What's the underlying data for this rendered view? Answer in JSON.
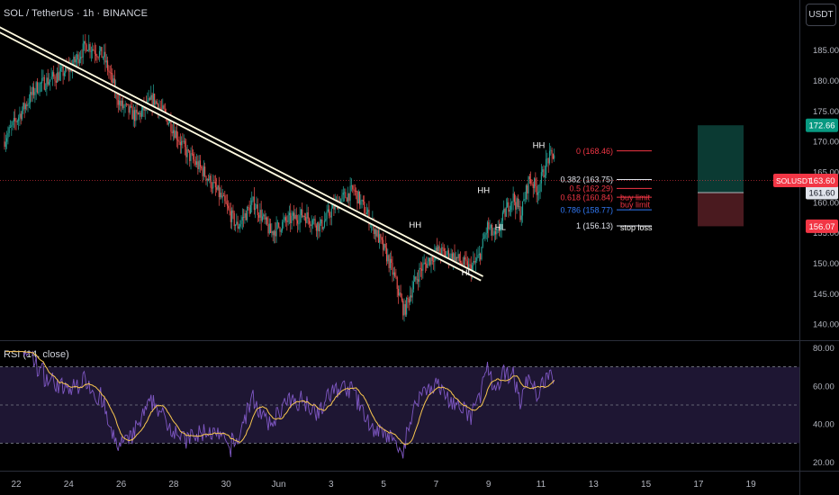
{
  "header": {
    "symbol_title": "SOL / TetherUS · 1h · BINANCE",
    "currency_label": "USDT"
  },
  "colors": {
    "background": "#000000",
    "up_candle": "#26a69a",
    "down_candle": "#ef5350",
    "trendline": "#fffbe0",
    "rsi_line": "#7e57c2",
    "rsi_ma": "#f9c74f",
    "profit_zone": "#0b3a33",
    "loss_zone": "#4a1a1f",
    "price_line": "#f23645"
  },
  "chart_data": {
    "type": "candlestick",
    "symbol": "SOLUSDT",
    "timeframe": "1h",
    "x_tick_labels": [
      "22",
      "24",
      "26",
      "28",
      "30",
      "Jun",
      "3",
      "5",
      "7",
      "9",
      "11",
      "13",
      "15",
      "17",
      "19"
    ],
    "price_axis": {
      "ticks": [
        "185.00",
        "180.00",
        "175.00",
        "170.00",
        "165.00",
        "160.00",
        "155.00",
        "150.00",
        "145.00",
        "140.00"
      ],
      "range": [
        137.5,
        192.5
      ]
    },
    "current_price": {
      "label": "SOLUSDT",
      "value": "163.60"
    },
    "price_badges": [
      {
        "name": "target",
        "value": "172.66",
        "color": "#089981"
      },
      {
        "name": "entry",
        "value": "161.60",
        "color": "#e0e3eb"
      },
      {
        "name": "stop",
        "value": "156.07",
        "color": "#f23645"
      }
    ],
    "price_path": [
      [
        0,
        170
      ],
      [
        2,
        179
      ],
      [
        4,
        182
      ],
      [
        5,
        186
      ],
      [
        6,
        184
      ],
      [
        7,
        176
      ],
      [
        8,
        174
      ],
      [
        9,
        177
      ],
      [
        10,
        173
      ],
      [
        11,
        168
      ],
      [
        12,
        165
      ],
      [
        13,
        161
      ],
      [
        14,
        156
      ],
      [
        15,
        160
      ],
      [
        16,
        155
      ],
      [
        17,
        157
      ],
      [
        18,
        158
      ],
      [
        19,
        156
      ],
      [
        20,
        160
      ],
      [
        21,
        162
      ],
      [
        22,
        157
      ],
      [
        23,
        151
      ],
      [
        23.5,
        147
      ],
      [
        24,
        142
      ],
      [
        24.5,
        146
      ],
      [
        25,
        149
      ],
      [
        26,
        152
      ],
      [
        27,
        151
      ],
      [
        28,
        149
      ],
      [
        28.5,
        151
      ],
      [
        29,
        156
      ],
      [
        29.5,
        154
      ],
      [
        30,
        158
      ],
      [
        30.5,
        161
      ],
      [
        31,
        158
      ],
      [
        31.5,
        164
      ],
      [
        32,
        162
      ],
      [
        32.6,
        167
      ],
      [
        33,
        168
      ]
    ],
    "trendline": {
      "start": [
        -0.4,
        188.5
      ],
      "end": [
        28.6,
        147.5
      ]
    },
    "structure_labels": [
      {
        "text": "HH",
        "x": 24.6,
        "price": 155.8
      },
      {
        "text": "HL",
        "x": 27.7,
        "price": 148.0
      },
      {
        "text": "HH",
        "x": 28.7,
        "price": 161.5
      },
      {
        "text": "HL",
        "x": 29.7,
        "price": 155.5
      },
      {
        "text": "HH",
        "x": 32.0,
        "price": 168.9
      }
    ],
    "fibonacci": [
      {
        "label": "0 (168.46)",
        "price": 168.46,
        "color": "#f23645"
      },
      {
        "label": "0.382 (163.75)",
        "price": 163.75,
        "color": "#e0e3eb"
      },
      {
        "label": "0.5 (162.29)",
        "price": 162.29,
        "color": "#f23645"
      },
      {
        "label": "0.618 (160.84)",
        "price": 160.84,
        "color": "#f23645"
      },
      {
        "label": "0.786 (158.77)",
        "price": 158.77,
        "color": "#3179f5"
      },
      {
        "label": "1 (156.13)",
        "price": 156.13,
        "color": "#e0e3eb"
      }
    ],
    "annotations": [
      {
        "text": "buy limit",
        "price": 160.8
      },
      {
        "text": "buy limit",
        "price": 159.6
      },
      {
        "text": "stop loss",
        "price": 155.8
      }
    ],
    "position_box": {
      "target": 172.66,
      "entry": 161.6,
      "stop": 156.07
    },
    "rsi": {
      "title": "RSI (14, close)",
      "ticks": [
        "80.00",
        "60.00",
        "40.00",
        "20.00"
      ],
      "range": [
        17,
        83
      ],
      "upper_band": 70,
      "middle_band": 50,
      "lower_band": 30
    }
  }
}
